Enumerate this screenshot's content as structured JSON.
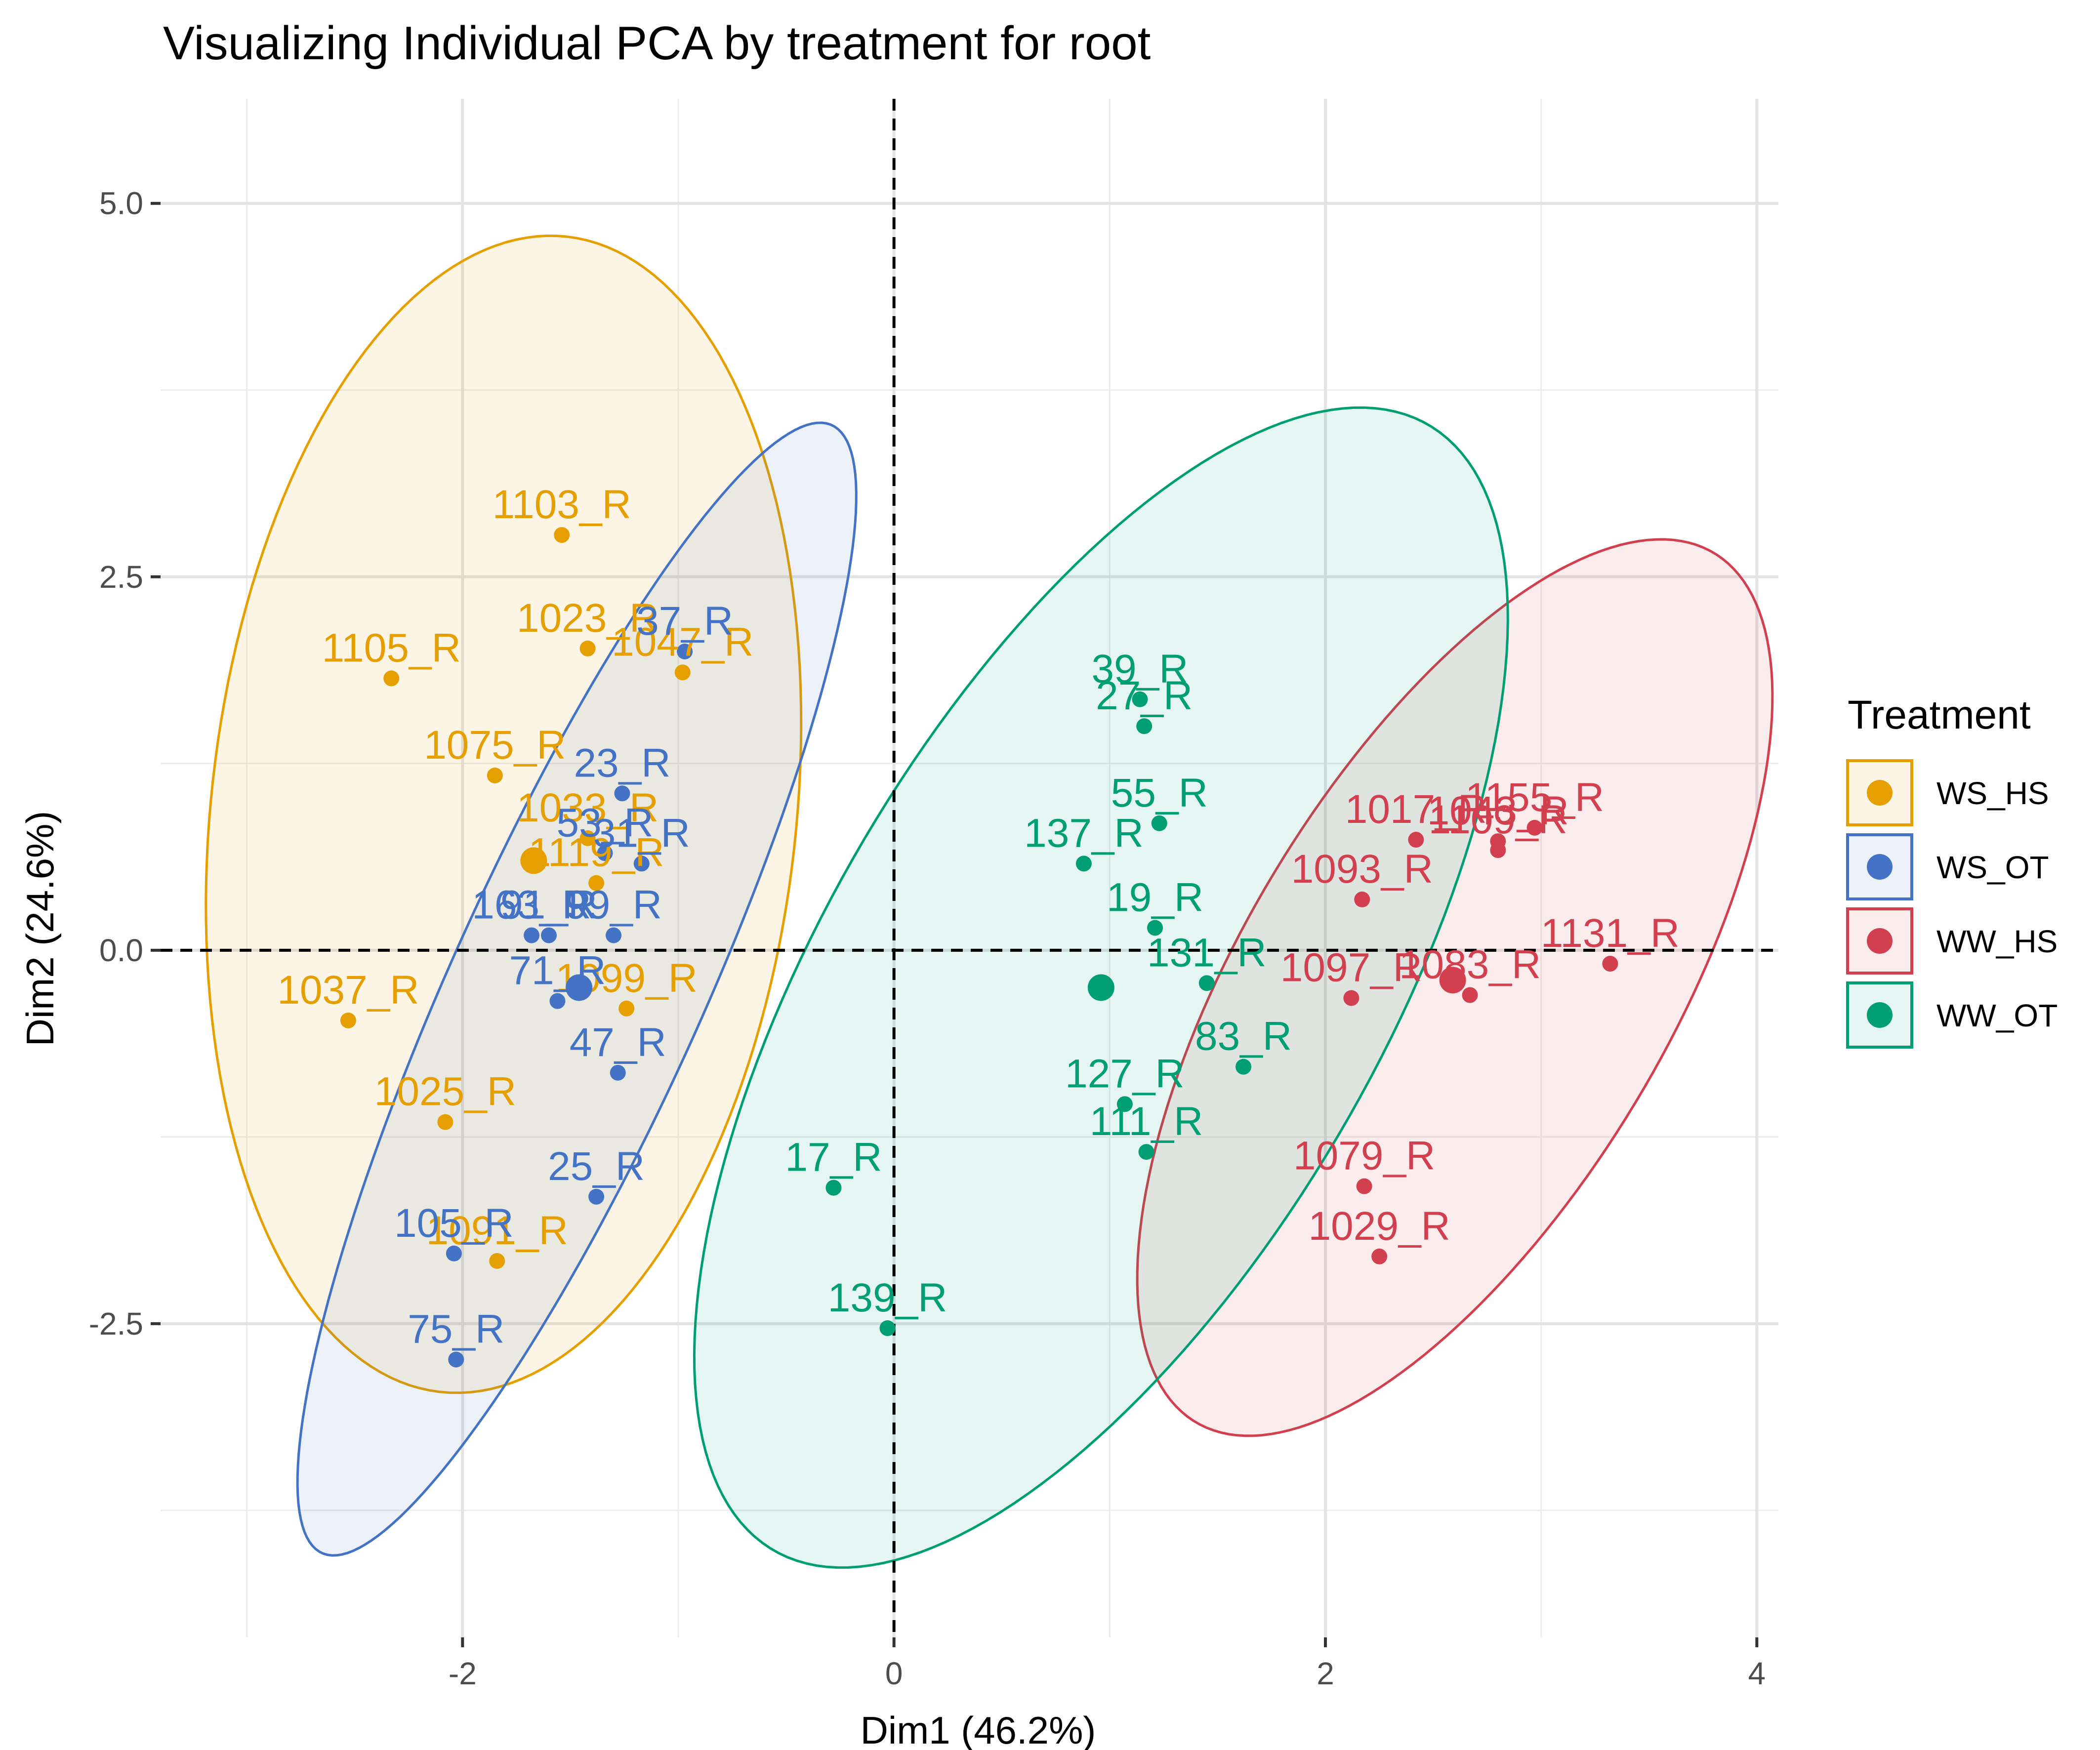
{
  "chart_data": {
    "type": "scatter",
    "title": "Visualizing Individual PCA by treatment for root",
    "xlabel": "Dim1 (46.2%)",
    "ylabel": "Dim2 (24.6%)",
    "xlim": [
      -3.4,
      4.1
    ],
    "ylim": [
      -4.6,
      5.7
    ],
    "x_ticks": [
      -2,
      0,
      2,
      4
    ],
    "x_tick_labels": [
      "-2",
      "0",
      "2",
      "4"
    ],
    "x_minor": [
      -3,
      -1,
      1,
      3
    ],
    "y_ticks": [
      -2.5,
      0,
      2.5,
      5
    ],
    "y_tick_labels": [
      "-2.5",
      "0.0",
      "2.5",
      "5.0"
    ],
    "y_minor": [
      -3.75,
      -1.25,
      1.25,
      3.75
    ],
    "grid": true,
    "reference_lines": {
      "x": 0,
      "y": 0
    },
    "legend": {
      "title": "Treatment",
      "position": "right"
    },
    "series": [
      {
        "name": "WS_HS",
        "color": "#E69F00",
        "centroid": {
          "x": -1.67,
          "y": 0.6
        },
        "ellipse": {
          "cx": -1.81,
          "cy": 0.91,
          "rx": 3.88,
          "ry": 1.36,
          "angle_deg": 86.33
        },
        "points": [
          {
            "label": "1103_R",
            "x": -1.54,
            "y": 2.78
          },
          {
            "label": "1023_R",
            "x": -1.42,
            "y": 2.02
          },
          {
            "label": "1105_R",
            "x": -2.33,
            "y": 1.82
          },
          {
            "label": "1047_R",
            "x": -0.98,
            "y": 1.86
          },
          {
            "label": "1075_R",
            "x": -1.85,
            "y": 1.17
          },
          {
            "label": "1033_R",
            "x": -1.42,
            "y": 0.75
          },
          {
            "label": "1119_R",
            "x": -1.38,
            "y": 0.45
          },
          {
            "label": "1099_R",
            "x": -1.24,
            "y": -0.39
          },
          {
            "label": "1037_R",
            "x": -2.53,
            "y": -0.47
          },
          {
            "label": "1025_R",
            "x": -2.08,
            "y": -1.15
          },
          {
            "label": "1091_R",
            "x": -1.84,
            "y": -2.08
          }
        ]
      },
      {
        "name": "WS_OT",
        "color": "#4472C4",
        "centroid": {
          "x": -1.46,
          "y": -0.25
        },
        "ellipse": {
          "cx": -1.47,
          "cy": -0.26,
          "rx": 3.96,
          "ry": 0.61,
          "angle_deg": 73.02
        },
        "points": [
          {
            "label": "37_R",
            "x": -0.97,
            "y": 2.0
          },
          {
            "label": "23_R",
            "x": -1.26,
            "y": 1.05
          },
          {
            "label": "31_R",
            "x": -1.17,
            "y": 0.58
          },
          {
            "label": "53_R",
            "x": -1.34,
            "y": 0.65
          },
          {
            "label": "163_R",
            "x": -1.68,
            "y": 0.1
          },
          {
            "label": "99_R",
            "x": -1.3,
            "y": 0.1
          },
          {
            "label": "91_R",
            "x": -1.6,
            "y": 0.1
          },
          {
            "label": "71_R",
            "x": -1.56,
            "y": -0.34
          },
          {
            "label": "47_R",
            "x": -1.28,
            "y": -0.82
          },
          {
            "label": "25_R",
            "x": -1.38,
            "y": -1.65
          },
          {
            "label": "105_R",
            "x": -2.04,
            "y": -2.03
          },
          {
            "label": "75_R",
            "x": -2.03,
            "y": -2.74
          }
        ]
      },
      {
        "name": "WW_HS",
        "color": "#D2404F",
        "centroid": {
          "x": 2.59,
          "y": -0.2
        },
        "ellipse": {
          "cx": 2.6,
          "cy": -0.25,
          "rx": 3.17,
          "ry": 1.06,
          "angle_deg": 70.0
        },
        "points": [
          {
            "label": "1043_R",
            "x": 2.8,
            "y": 0.73
          },
          {
            "label": "1155_R",
            "x": 2.97,
            "y": 0.82
          },
          {
            "label": "1017_R",
            "x": 2.42,
            "y": 0.74
          },
          {
            "label": "1109_R",
            "x": 2.8,
            "y": 0.67
          },
          {
            "label": "1093_R",
            "x": 2.17,
            "y": 0.34
          },
          {
            "label": "1131_R",
            "x": 3.32,
            "y": -0.09
          },
          {
            "label": "1097_R",
            "x": 2.12,
            "y": -0.32
          },
          {
            "label": "1083_R",
            "x": 2.67,
            "y": -0.3
          },
          {
            "label": "1079_R",
            "x": 2.18,
            "y": -1.58
          },
          {
            "label": "1029_R",
            "x": 2.25,
            "y": -2.05
          }
        ]
      },
      {
        "name": "WW_OT",
        "color": "#009E73",
        "centroid": {
          "x": 0.96,
          "y": -0.25
        },
        "ellipse": {
          "cx": 0.96,
          "cy": -0.25,
          "rx": 4.09,
          "ry": 1.38,
          "angle_deg": 70.5
        },
        "points": [
          {
            "label": "39_R",
            "x": 1.14,
            "y": 1.68
          },
          {
            "label": "27_R",
            "x": 1.16,
            "y": 1.5
          },
          {
            "label": "55_R",
            "x": 1.23,
            "y": 0.85
          },
          {
            "label": "137_R",
            "x": 0.88,
            "y": 0.58
          },
          {
            "label": "19_R",
            "x": 1.21,
            "y": 0.15
          },
          {
            "label": "131_R",
            "x": 1.45,
            "y": -0.22
          },
          {
            "label": "83_R",
            "x": 1.62,
            "y": -0.78
          },
          {
            "label": "127_R",
            "x": 1.07,
            "y": -1.03
          },
          {
            "label": "111_R",
            "x": 1.17,
            "y": -1.35
          },
          {
            "label": "17_R",
            "x": -0.28,
            "y": -1.59
          },
          {
            "label": "139_R",
            "x": -0.03,
            "y": -2.53
          }
        ]
      }
    ]
  }
}
